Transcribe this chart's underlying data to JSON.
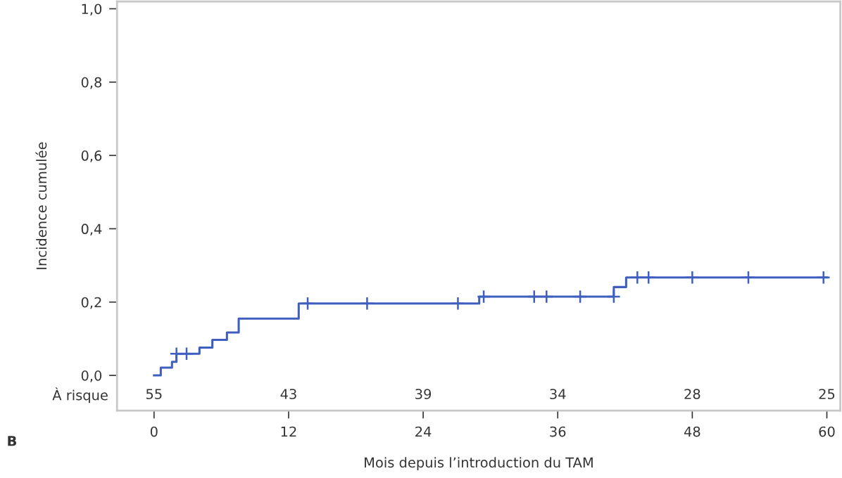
{
  "chart_data": {
    "type": "step",
    "xlabel": "Mois depuis l’introduction du TAM",
    "ylabel": "Incidence cumulée",
    "xlim": [
      -3.3,
      61.2
    ],
    "ylim": [
      -0.096,
      1.02
    ],
    "xticks": [
      0,
      12,
      24,
      36,
      48,
      60
    ],
    "yticks": [
      {
        "value": 0,
        "label": "0,0"
      },
      {
        "value": 0.2,
        "label": "0,2"
      },
      {
        "value": 0.4,
        "label": "0,4"
      },
      {
        "value": 0.6,
        "label": "0,6"
      },
      {
        "value": 0.8,
        "label": "0,8"
      },
      {
        "value": 1.0,
        "label": "1,0"
      }
    ],
    "grid": false,
    "legend": false,
    "series": [
      {
        "color": "#3f5fbf",
        "x": [
          0,
          0.6,
          1.6,
          2.0,
          4.05,
          5.2,
          6.5,
          7.55,
          12.9,
          29.0,
          41.0,
          42.1,
          60
        ],
        "values": [
          0,
          0.021,
          0.037,
          0.059,
          0.076,
          0.097,
          0.117,
          0.155,
          0.196,
          0.215,
          0.241,
          0.267,
          0.267
        ]
      },
      {
        "type": "scatter",
        "marker": "cross",
        "color": "#3f5fbf",
        "x": [
          2.0,
          2.9,
          13.7,
          19.0,
          27.1,
          29.4,
          33.9,
          35.0,
          38.0,
          41.0,
          43.1,
          44.1,
          48.0,
          53.0,
          59.7
        ],
        "values": [
          0.059,
          0.059,
          0.196,
          0.196,
          0.196,
          0.215,
          0.215,
          0.215,
          0.215,
          0.215,
          0.267,
          0.267,
          0.267,
          0.267,
          0.267
        ]
      }
    ],
    "annotations": [
      "55",
      "43",
      "39",
      "34",
      "28",
      "25",
      "À risque",
      "B"
    ]
  }
}
